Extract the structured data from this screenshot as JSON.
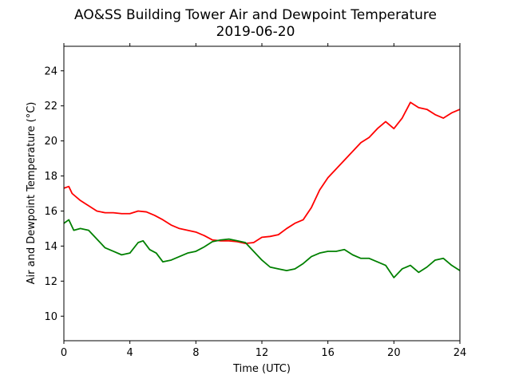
{
  "chart_data": {
    "type": "line",
    "title": "AO&SS Building Tower Air and Dewpoint Temperature",
    "subtitle": "2019-06-20",
    "xlabel": "Time (UTC)",
    "ylabel": "Air and Dewpoint Temperature (°C)",
    "xlim": [
      0,
      24
    ],
    "ylim": [
      8.6,
      25.4
    ],
    "xticks": [
      0,
      4,
      8,
      12,
      16,
      20,
      24
    ],
    "yticks": [
      10,
      12,
      14,
      16,
      18,
      20,
      22,
      24
    ],
    "grid": false,
    "legend": "none",
    "series": [
      {
        "color": "#ff0000",
        "x": [
          0,
          0.3,
          0.5,
          1,
          1.5,
          2,
          2.5,
          3,
          3.5,
          4,
          4.5,
          5,
          5.5,
          6,
          6.5,
          7,
          7.5,
          8,
          8.5,
          9,
          9.5,
          10,
          10.5,
          11,
          11.5,
          12,
          12.5,
          13,
          13.5,
          14,
          14.5,
          15,
          15.5,
          16,
          16.5,
          17,
          17.5,
          18,
          18.5,
          19,
          19.5,
          20,
          20.5,
          21,
          21.5,
          22,
          22.5,
          23,
          23.5,
          24
        ],
        "y": [
          17.3,
          17.4,
          17.0,
          16.6,
          16.3,
          16.0,
          15.9,
          15.9,
          15.85,
          15.85,
          16.0,
          15.95,
          15.75,
          15.5,
          15.2,
          15.0,
          14.9,
          14.8,
          14.6,
          14.35,
          14.3,
          14.3,
          14.25,
          14.15,
          14.2,
          14.5,
          14.55,
          14.65,
          15.0,
          15.3,
          15.5,
          16.2,
          17.2,
          17.9,
          18.4,
          18.9,
          19.4,
          19.9,
          20.2,
          20.7,
          21.1,
          20.7,
          21.3,
          22.2,
          21.9,
          21.8,
          21.5,
          21.3,
          21.6,
          21.8
        ]
      },
      {
        "color": "#008000",
        "x": [
          0,
          0.3,
          0.6,
          1,
          1.5,
          2,
          2.5,
          3,
          3.5,
          4,
          4.5,
          4.8,
          5.2,
          5.6,
          6,
          6.5,
          7,
          7.5,
          8,
          8.5,
          9,
          9.5,
          10,
          10.5,
          11,
          11.5,
          12,
          12.5,
          13,
          13.5,
          14,
          14.5,
          15,
          15.5,
          16,
          16.5,
          17,
          17.5,
          18,
          18.5,
          19,
          19.5,
          20,
          20.5,
          21,
          21.5,
          22,
          22.5,
          23,
          23.5,
          24
        ],
        "y": [
          15.3,
          15.5,
          14.9,
          15.0,
          14.9,
          14.4,
          13.9,
          13.7,
          13.5,
          13.6,
          14.2,
          14.3,
          13.8,
          13.6,
          13.1,
          13.2,
          13.4,
          13.6,
          13.7,
          13.95,
          14.25,
          14.35,
          14.4,
          14.3,
          14.2,
          13.7,
          13.2,
          12.8,
          12.7,
          12.6,
          12.7,
          13.0,
          13.4,
          13.6,
          13.7,
          13.7,
          13.8,
          13.5,
          13.3,
          13.3,
          13.1,
          12.9,
          12.2,
          12.7,
          12.9,
          12.5,
          12.8,
          13.2,
          13.3,
          12.9,
          12.6
        ]
      }
    ]
  }
}
